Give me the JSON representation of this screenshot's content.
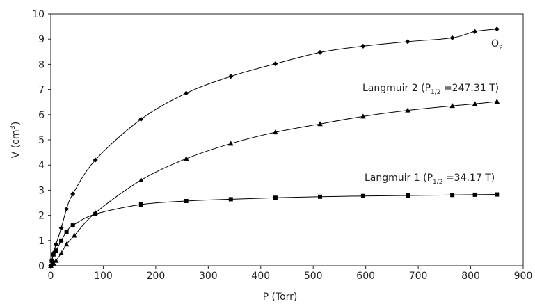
{
  "chart_data": {
    "type": "scatter",
    "xlabel": "P (Torr)",
    "ylabel": "V (cm³)",
    "ylabel_parts": {
      "base": "V (cm",
      "sup": "3",
      "end": ")"
    },
    "xlim": [
      0,
      900
    ],
    "ylim": [
      0,
      10
    ],
    "xticks": [
      0,
      100,
      200,
      300,
      400,
      500,
      600,
      700,
      800,
      900
    ],
    "yticks": [
      0,
      1,
      2,
      3,
      4,
      5,
      6,
      7,
      8,
      9,
      10
    ],
    "grid": false,
    "series": [
      {
        "name": "O2",
        "label_parts": {
          "base": "O",
          "sub": "2",
          "end": ""
        },
        "marker": "diamond",
        "color": "#000000",
        "x": [
          0,
          2,
          5,
          10,
          20,
          30,
          42,
          85,
          172,
          258,
          343,
          428,
          513,
          595,
          680,
          765,
          808,
          850
        ],
        "y": [
          0,
          0.2,
          0.5,
          0.85,
          1.5,
          2.25,
          2.85,
          4.2,
          5.82,
          6.85,
          7.52,
          8.02,
          8.47,
          8.72,
          8.9,
          9.05,
          9.3,
          9.4
        ]
      },
      {
        "name": "Langmuir 2 (P1/2 =247.31 T)",
        "label_parts": {
          "base": "Langmuir 2 (P",
          "sub": "1/2",
          "end": " =247.31 T)"
        },
        "marker": "triangle",
        "color": "#000000",
        "x": [
          0,
          2,
          5,
          10,
          20,
          30,
          45,
          85,
          172,
          258,
          343,
          428,
          513,
          595,
          680,
          765,
          808,
          850
        ],
        "y": [
          0,
          0.05,
          0.1,
          0.2,
          0.5,
          0.85,
          1.2,
          2.1,
          3.4,
          4.25,
          4.85,
          5.3,
          5.63,
          5.93,
          6.17,
          6.35,
          6.43,
          6.52
        ]
      },
      {
        "name": "Langmuir 1 (P1/2 =34.17 T)",
        "label_parts": {
          "base": "Langmuir 1 (P",
          "sub": "1/2",
          "end": " =34.17 T)"
        },
        "marker": "square",
        "color": "#000000",
        "x": [
          0,
          2,
          5,
          10,
          20,
          30,
          42,
          85,
          172,
          258,
          343,
          428,
          513,
          595,
          680,
          765,
          808,
          850
        ],
        "y": [
          0,
          0.2,
          0.45,
          0.6,
          1.0,
          1.35,
          1.6,
          2.05,
          2.43,
          2.57,
          2.64,
          2.7,
          2.74,
          2.77,
          2.79,
          2.81,
          2.82,
          2.83
        ]
      }
    ]
  }
}
